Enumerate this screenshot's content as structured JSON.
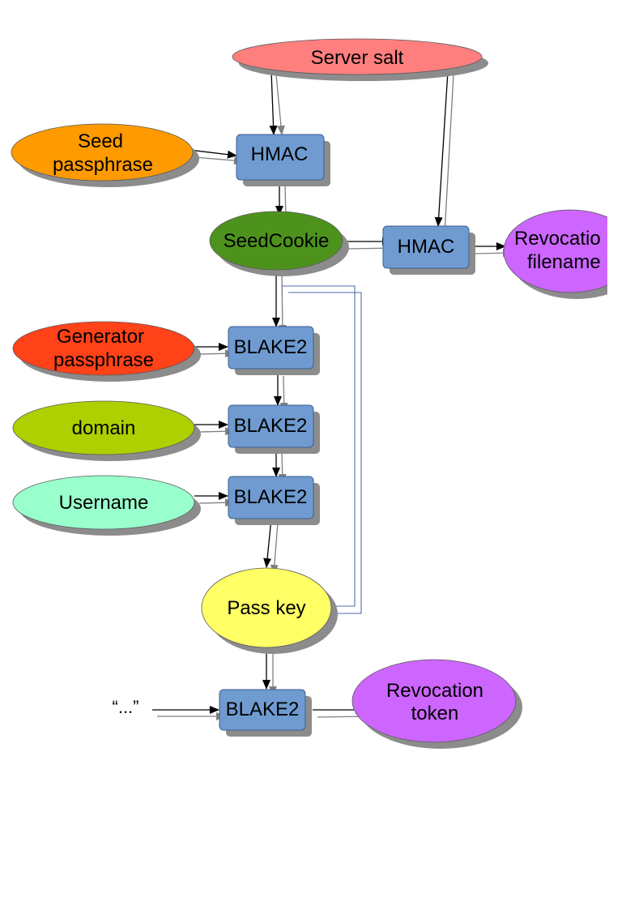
{
  "diagram": {
    "inputs": {
      "server_salt": "Server salt",
      "seed_passphrase": [
        "Seed",
        "passphrase"
      ],
      "generator_passphrase": [
        "Generator",
        "passphrase"
      ],
      "domain": "domain",
      "username": "Username",
      "ellipsis": "“...”"
    },
    "operations": {
      "hmac_seed": "HMAC",
      "hmac_revocation": "HMAC",
      "blake2_generator": "BLAKE2",
      "blake2_domain": "BLAKE2",
      "blake2_username": "BLAKE2",
      "blake2_token": "BLAKE2"
    },
    "outputs": {
      "seed_cookie": "SeedCookie",
      "revocation_filename": [
        "Revocatio",
        "filename"
      ],
      "pass_key": "Pass key",
      "revocation_token": [
        "Revocation",
        "token"
      ]
    },
    "colors": {
      "box": "#6f9bd1",
      "server_salt": "#ff7f7f",
      "seed_passphrase": "#ff9a00",
      "seed_cookie": "#4d921d",
      "revocation": "#cc66ff",
      "generator_passphrase": "#ff4218",
      "domain": "#aecf00",
      "username": "#99ffcc",
      "pass_key": "#ffff66"
    }
  }
}
